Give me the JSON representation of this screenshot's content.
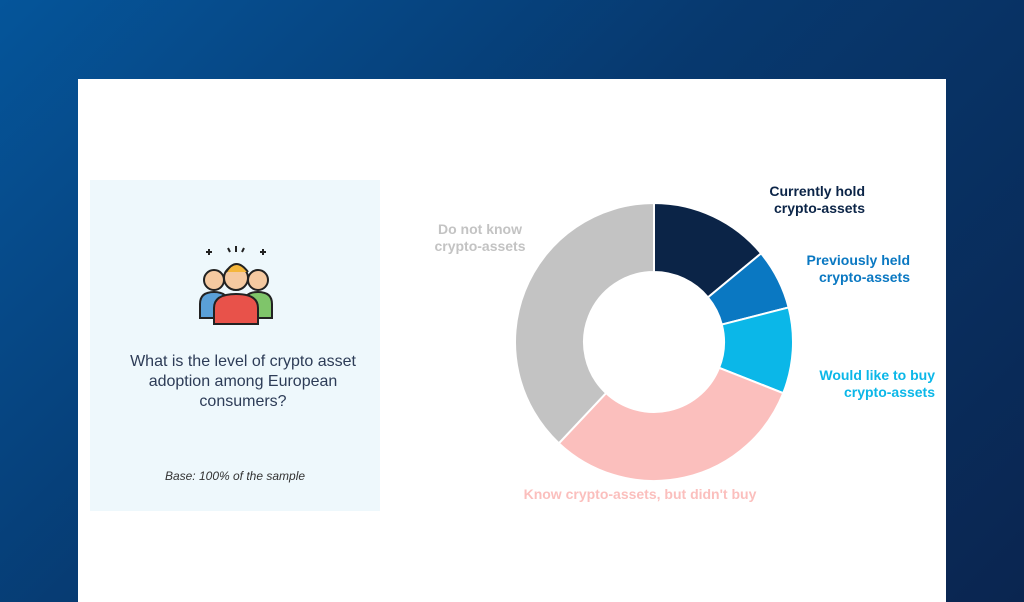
{
  "chart_data": {
    "type": "donut",
    "title": "What is the level of crypto asset adoption among European consumers?",
    "subtitle": "Base: 100% of the sample",
    "categories": [
      "Currently hold crypto-assets",
      "Previously held crypto-assets",
      "Would like to buy crypto-assets",
      "Know crypto-assets,  but didn't buy",
      "Do not know crypto-assets"
    ],
    "values": [
      14,
      7,
      10,
      31,
      38
    ],
    "colors": [
      "#0b2447",
      "#0a78c2",
      "#0bb7e8",
      "#fbbfbd",
      "#c3c3c3"
    ]
  }
}
